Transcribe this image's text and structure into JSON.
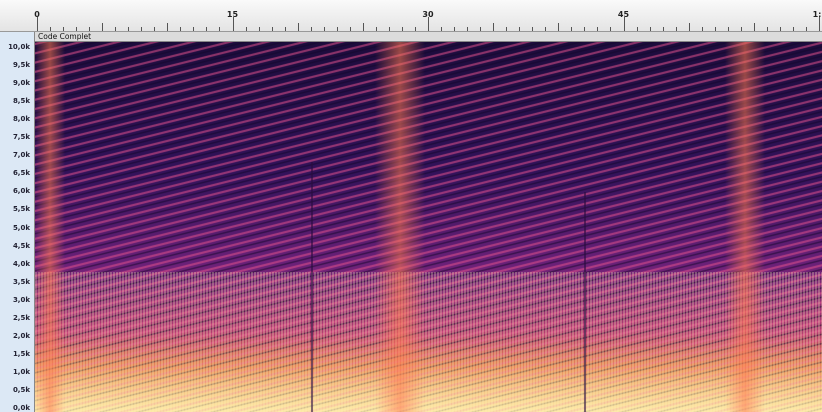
{
  "ruler": {
    "labels": [
      "0",
      "15",
      "30",
      "45",
      "1:"
    ]
  },
  "track": {
    "name": "Code Complet"
  },
  "frequency_axis": {
    "labels": [
      "10,0k",
      "9,5k",
      "9,0k",
      "8,5k",
      "8,0k",
      "7,5k",
      "7,0k",
      "6,5k",
      "6,0k",
      "5,5k",
      "5,0k",
      "4,5k",
      "4,0k",
      "3,5k",
      "3,0k",
      "2,5k",
      "2,0k",
      "1,5k",
      "1,0k",
      "0,5k",
      "0,0k"
    ]
  }
}
